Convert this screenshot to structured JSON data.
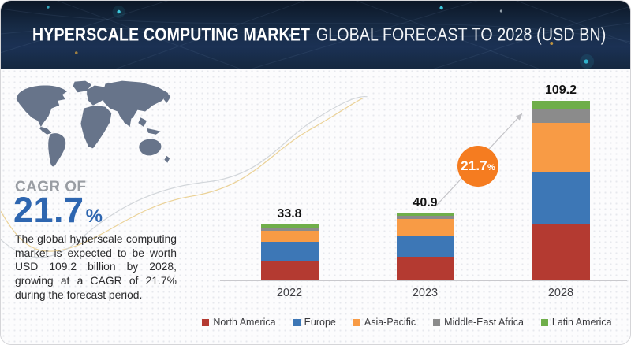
{
  "header": {
    "title_bold": "HYPERSCALE COMPUTING MARKET",
    "title_rest": "GLOBAL FORECAST TO 2028 (USD BN)",
    "bg_color": "#16293f"
  },
  "sidebar": {
    "cagr_label": "CAGR OF",
    "cagr_value": "21.7",
    "cagr_percent_sign": "%",
    "cagr_color": "#2e66b0",
    "map_color": "#67748a",
    "description": "The global hyperscale computing market is expected to be worth USD 109.2 billion by 2028, growing at a CAGR of 21.7% during the forecast period."
  },
  "chart_data": {
    "type": "bar",
    "stacked": true,
    "title": "Hyperscale Computing Market Global Forecast to 2028 (USD BN)",
    "unit": "USD BN",
    "categories": [
      "2022",
      "2023",
      "2028"
    ],
    "totals": [
      33.8,
      40.9,
      109.2
    ],
    "series": [
      {
        "name": "North America",
        "color": "#b43a31",
        "values": [
          12.0,
          14.4,
          34.3
        ]
      },
      {
        "name": "Europe",
        "color": "#3d77b6",
        "values": [
          11.4,
          12.8,
          31.6
        ]
      },
      {
        "name": "Asia-Pacific",
        "color": "#f89b45",
        "values": [
          6.7,
          10.0,
          30.1
        ]
      },
      {
        "name": "Middle-East Africa",
        "color": "#8b8b8b",
        "values": [
          1.3,
          1.9,
          8.2
        ]
      },
      {
        "name": "Latin America",
        "color": "#6fae4a",
        "values": [
          2.4,
          1.8,
          5.0
        ]
      }
    ],
    "growth_badge": {
      "value": "21.7",
      "suffix": "%",
      "color": "#f57c20"
    },
    "legend_position": "bottom",
    "grid": false,
    "xlabel": "",
    "ylabel": "",
    "value_labels": true
  }
}
